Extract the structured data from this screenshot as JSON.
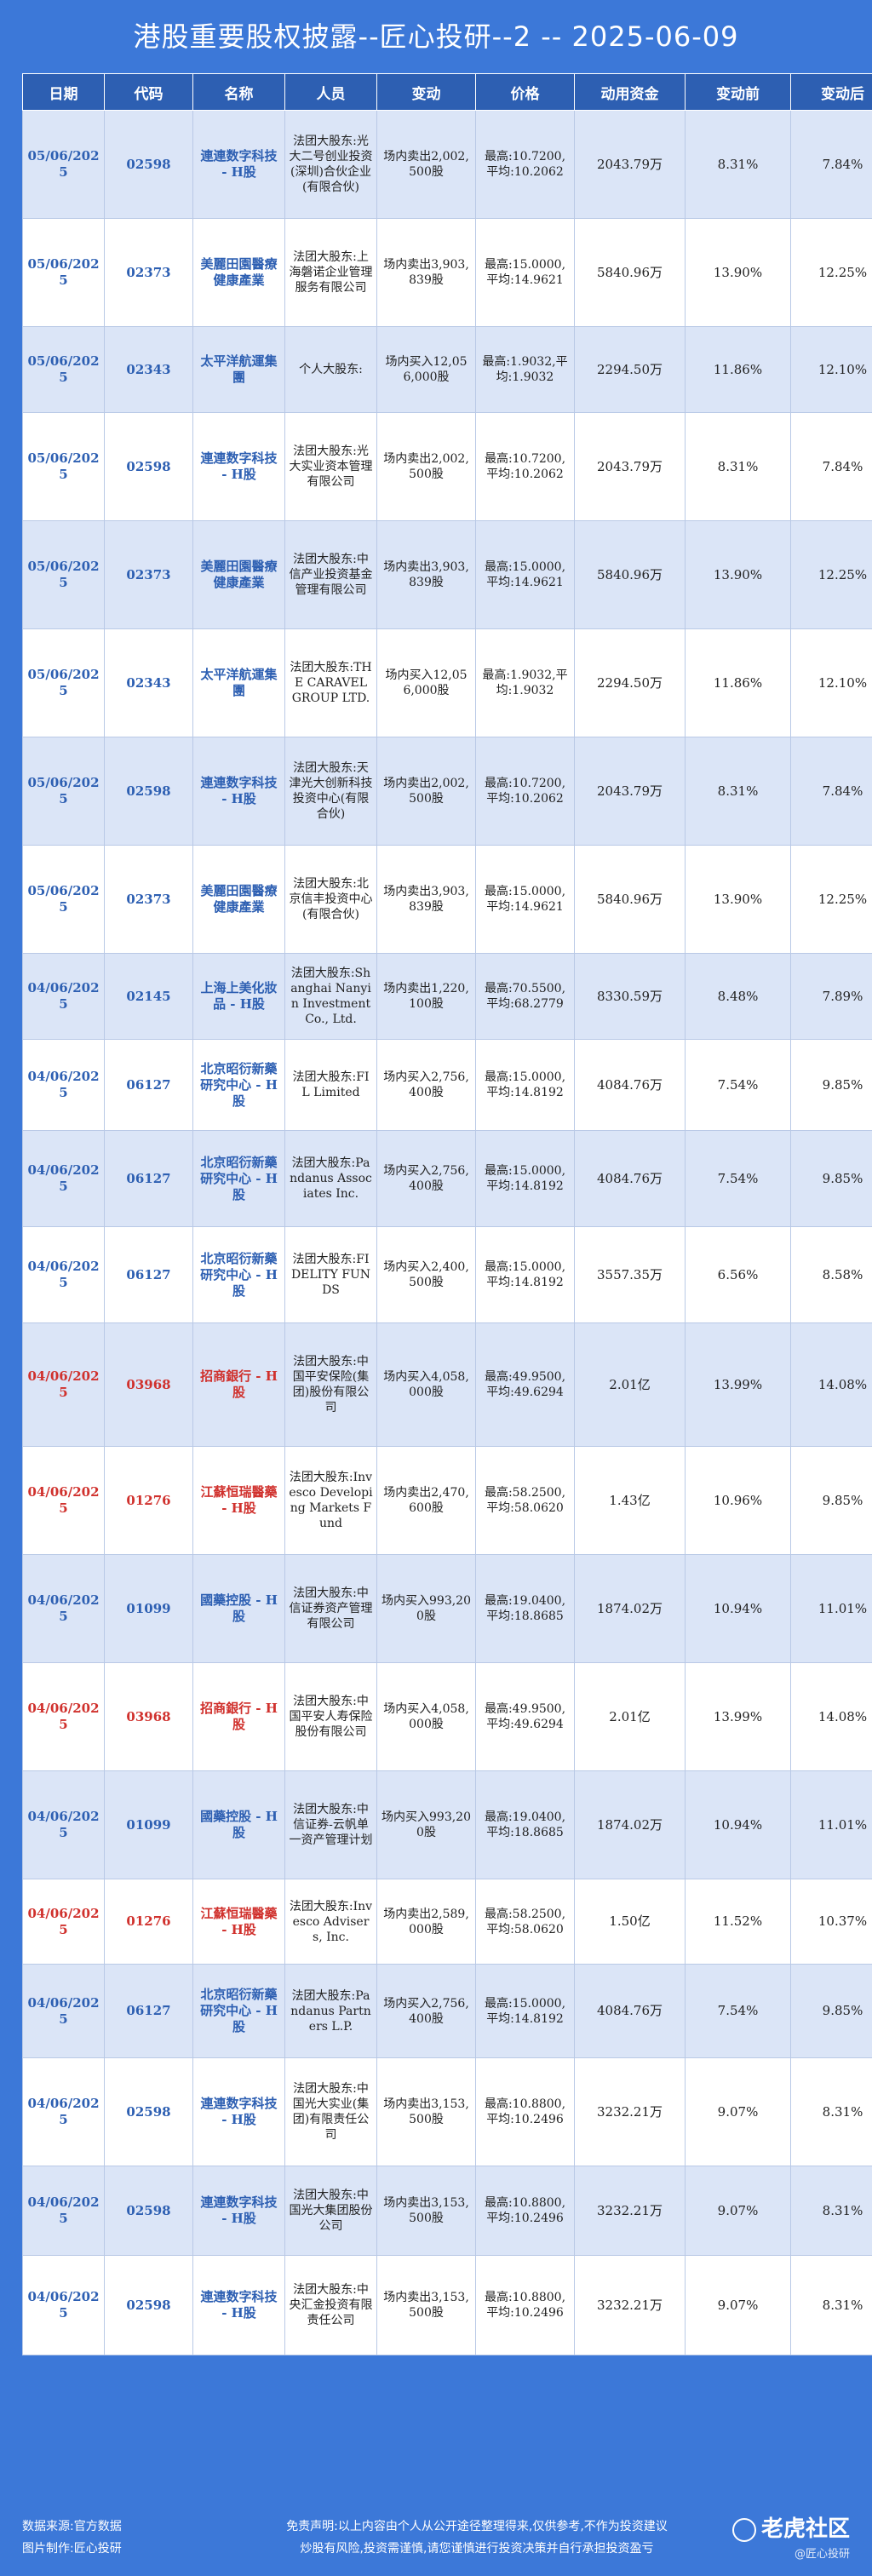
{
  "title": "港股重要股权披露--匠心投研--2 -- 2025-06-09",
  "headers": [
    "日期",
    "代码",
    "名称",
    "人员",
    "变动",
    "价格",
    "动用资金",
    "变动前",
    "变动后"
  ],
  "rows": [
    {
      "date": "05/06/2025",
      "code": "02598",
      "name": "連連数字科技 - H股",
      "person": "法团大股东:光大二号创业投资(深圳)合伙企业(有限合伙)",
      "change": "场内卖出2,002,500股",
      "price": "最高:10.7200,平均:10.2062",
      "amount": "2043.79万",
      "before": "8.31%",
      "after": "7.84%",
      "red": false
    },
    {
      "date": "05/06/2025",
      "code": "02373",
      "name": "美麗田園醫療健康產業",
      "person": "法团大股东:上海磐诺企业管理服务有限公司",
      "change": "场内卖出3,903,839股",
      "price": "最高:15.0000,平均:14.9621",
      "amount": "5840.96万",
      "before": "13.90%",
      "after": "12.25%",
      "red": false
    },
    {
      "date": "05/06/2025",
      "code": "02343",
      "name": "太平洋航運集團",
      "person": "个人大股东:",
      "change": "场内买入12,056,000股",
      "price": "最高:1.9032,平均:1.9032",
      "amount": "2294.50万",
      "before": "11.86%",
      "after": "12.10%",
      "red": false
    },
    {
      "date": "05/06/2025",
      "code": "02598",
      "name": "連連数字科技 - H股",
      "person": "法团大股东:光大实业资本管理有限公司",
      "change": "场内卖出2,002,500股",
      "price": "最高:10.7200,平均:10.2062",
      "amount": "2043.79万",
      "before": "8.31%",
      "after": "7.84%",
      "red": false
    },
    {
      "date": "05/06/2025",
      "code": "02373",
      "name": "美麗田園醫療健康產業",
      "person": "法团大股东:中信产业投资基金管理有限公司",
      "change": "场内卖出3,903,839股",
      "price": "最高:15.0000,平均:14.9621",
      "amount": "5840.96万",
      "before": "13.90%",
      "after": "12.25%",
      "red": false
    },
    {
      "date": "05/06/2025",
      "code": "02343",
      "name": "太平洋航運集團",
      "person": "法团大股东:THE CARAVEL GROUP LTD.",
      "change": "场内买入12,056,000股",
      "price": "最高:1.9032,平均:1.9032",
      "amount": "2294.50万",
      "before": "11.86%",
      "after": "12.10%",
      "red": false
    },
    {
      "date": "05/06/2025",
      "code": "02598",
      "name": "連連数字科技 - H股",
      "person": "法团大股东:天津光大创新科技投资中心(有限合伙)",
      "change": "场内卖出2,002,500股",
      "price": "最高:10.7200,平均:10.2062",
      "amount": "2043.79万",
      "before": "8.31%",
      "after": "7.84%",
      "red": false
    },
    {
      "date": "05/06/2025",
      "code": "02373",
      "name": "美麗田園醫療健康產業",
      "person": "法团大股东:北京信丰投资中心(有限合伙)",
      "change": "场内卖出3,903,839股",
      "price": "最高:15.0000,平均:14.9621",
      "amount": "5840.96万",
      "before": "13.90%",
      "after": "12.25%",
      "red": false
    },
    {
      "date": "04/06/2025",
      "code": "02145",
      "name": "上海上美化妝品 - H股",
      "person": "法团大股东:Shanghai Nanyin Investment Co., Ltd.",
      "change": "场内卖出1,220,100股",
      "price": "最高:70.5500,平均:68.2779",
      "amount": "8330.59万",
      "before": "8.48%",
      "after": "7.89%",
      "red": false
    },
    {
      "date": "04/06/2025",
      "code": "06127",
      "name": "北京昭衍新藥研究中心 - H股",
      "person": "法团大股东:FIL Limited",
      "change": "场内买入2,756,400股",
      "price": "最高:15.0000,平均:14.8192",
      "amount": "4084.76万",
      "before": "7.54%",
      "after": "9.85%",
      "red": false
    },
    {
      "date": "04/06/2025",
      "code": "06127",
      "name": "北京昭衍新藥研究中心 - H股",
      "person": "法团大股东:Pandanus Associates Inc.",
      "change": "场内买入2,756,400股",
      "price": "最高:15.0000,平均:14.8192",
      "amount": "4084.76万",
      "before": "7.54%",
      "after": "9.85%",
      "red": false
    },
    {
      "date": "04/06/2025",
      "code": "06127",
      "name": "北京昭衍新藥研究中心 - H股",
      "person": "法团大股东:FIDELITY FUNDS",
      "change": "场内买入2,400,500股",
      "price": "最高:15.0000,平均:14.8192",
      "amount": "3557.35万",
      "before": "6.56%",
      "after": "8.58%",
      "red": false
    },
    {
      "date": "04/06/2025",
      "code": "03968",
      "name": "招商銀行 - H股",
      "person": "法团大股东:中国平安保险(集团)股份有限公司",
      "change": "场内买入4,058,000股",
      "price": "最高:49.9500,平均:49.6294",
      "amount": "2.01亿",
      "before": "13.99%",
      "after": "14.08%",
      "red": true
    },
    {
      "date": "04/06/2025",
      "code": "01276",
      "name": "江蘇恒瑞醫藥 - H股",
      "person": "法团大股东:Invesco Developing Markets Fund",
      "change": "场内卖出2,470,600股",
      "price": "最高:58.2500,平均:58.0620",
      "amount": "1.43亿",
      "before": "10.96%",
      "after": "9.85%",
      "red": true
    },
    {
      "date": "04/06/2025",
      "code": "01099",
      "name": "國藥控股 - H股",
      "person": "法团大股东:中信证券资产管理有限公司",
      "change": "场内买入993,200股",
      "price": "最高:19.0400,平均:18.8685",
      "amount": "1874.02万",
      "before": "10.94%",
      "after": "11.01%",
      "red": false
    },
    {
      "date": "04/06/2025",
      "code": "03968",
      "name": "招商銀行 - H股",
      "person": "法团大股东:中国平安人寿保险股份有限公司",
      "change": "场内买入4,058,000股",
      "price": "最高:49.9500,平均:49.6294",
      "amount": "2.01亿",
      "before": "13.99%",
      "after": "14.08%",
      "red": true
    },
    {
      "date": "04/06/2025",
      "code": "01099",
      "name": "國藥控股 - H股",
      "person": "法团大股东:中信证券-云帆单一资产管理计划",
      "change": "场内买入993,200股",
      "price": "最高:19.0400,平均:18.8685",
      "amount": "1874.02万",
      "before": "10.94%",
      "after": "11.01%",
      "red": false
    },
    {
      "date": "04/06/2025",
      "code": "01276",
      "name": "江蘇恒瑞醫藥 - H股",
      "person": "法团大股东:Invesco Advisers, Inc.",
      "change": "场内卖出2,589,000股",
      "price": "最高:58.2500,平均:58.0620",
      "amount": "1.50亿",
      "before": "11.52%",
      "after": "10.37%",
      "red": true
    },
    {
      "date": "04/06/2025",
      "code": "06127",
      "name": "北京昭衍新藥研究中心 - H股",
      "person": "法团大股东:Pandanus Partners L.P.",
      "change": "场内买入2,756,400股",
      "price": "最高:15.0000,平均:14.8192",
      "amount": "4084.76万",
      "before": "7.54%",
      "after": "9.85%",
      "red": false
    },
    {
      "date": "04/06/2025",
      "code": "02598",
      "name": "連連数字科技 - H股",
      "person": "法团大股东:中国光大实业(集团)有限责任公司",
      "change": "场内卖出3,153,500股",
      "price": "最高:10.8800,平均:10.2496",
      "amount": "3232.21万",
      "before": "9.07%",
      "after": "8.31%",
      "red": false
    },
    {
      "date": "04/06/2025",
      "code": "02598",
      "name": "連連数字科技 - H股",
      "person": "法团大股东:中国光大集团股份公司",
      "change": "场内卖出3,153,500股",
      "price": "最高:10.8800,平均:10.2496",
      "amount": "3232.21万",
      "before": "9.07%",
      "after": "8.31%",
      "red": false
    },
    {
      "date": "04/06/2025",
      "code": "02598",
      "name": "連連数字科技 - H股",
      "person": "法团大股东:中央汇金投资有限责任公司",
      "change": "场内卖出3,153,500股",
      "price": "最高:10.8800,平均:10.2496",
      "amount": "3232.21万",
      "before": "9.07%",
      "after": "8.31%",
      "red": false
    }
  ],
  "footer": {
    "source": "数据来源:官方数据",
    "maker": "图片制作:匠心投研",
    "disclaimer1": "免责声明:以上内容由个人从公开途径整理得来,仅供参考,不作为投资建议",
    "disclaimer2": "炒股有风险,投资需谨慎,请您谨慎进行投资决策并自行承担投资盈亏",
    "brand": "老虎社区",
    "watermark": "@匠心投研"
  },
  "colors": {
    "background": "#3c78d8",
    "header": "#2d5fb2",
    "stripe": "#dbe5f7",
    "highlight": "#d0312d"
  }
}
